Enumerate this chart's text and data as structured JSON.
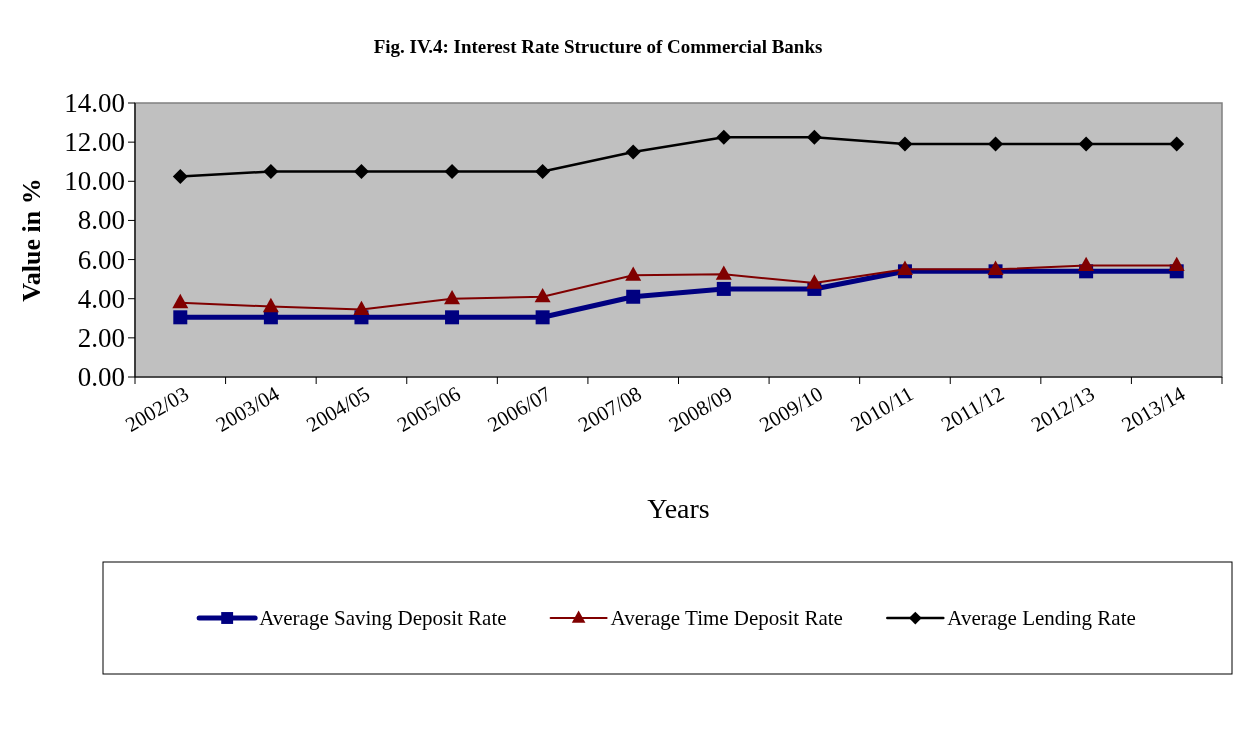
{
  "chart_data": {
    "type": "line",
    "title": "Fig. IV.4: Interest Rate Structure of Commercial Banks",
    "xlabel": "Years",
    "ylabel": "Value in %",
    "categories": [
      "2002/03",
      "2003/04",
      "2004/05",
      "2005/06",
      "2006/07",
      "2007/08",
      "2008/09",
      "2009/10",
      "2010/11",
      "2011/12",
      "2012/13",
      "2013/14"
    ],
    "series": [
      {
        "name": "Average Saving Deposit Rate",
        "color": "#000080",
        "marker": "square",
        "values": [
          3.05,
          3.05,
          3.05,
          3.05,
          3.05,
          4.1,
          4.5,
          4.5,
          5.4,
          5.4,
          5.4,
          5.4
        ]
      },
      {
        "name": "Average Time Deposit Rate",
        "color": "#800000",
        "marker": "triangle",
        "values": [
          3.8,
          3.6,
          3.45,
          4.0,
          4.1,
          5.2,
          5.25,
          4.8,
          5.5,
          5.5,
          5.7,
          5.7
        ]
      },
      {
        "name": "Average Lending Rate",
        "color": "#000000",
        "marker": "diamond",
        "values": [
          10.25,
          10.5,
          10.5,
          10.5,
          10.5,
          11.5,
          12.25,
          12.25,
          11.9,
          11.9,
          11.9,
          11.9
        ]
      }
    ],
    "ylim": [
      0,
      14
    ],
    "yticks": [
      {
        "value": 0,
        "label": "0.00"
      },
      {
        "value": 2,
        "label": "2.00"
      },
      {
        "value": 4,
        "label": "4.00"
      },
      {
        "value": 6,
        "label": "6.00"
      },
      {
        "value": 8,
        "label": "8.00"
      },
      {
        "value": 10,
        "label": "10.00"
      },
      {
        "value": 12,
        "label": "12.00"
      },
      {
        "value": 14,
        "label": "14.00"
      }
    ],
    "legend": "bottom",
    "line_style": "solid"
  }
}
